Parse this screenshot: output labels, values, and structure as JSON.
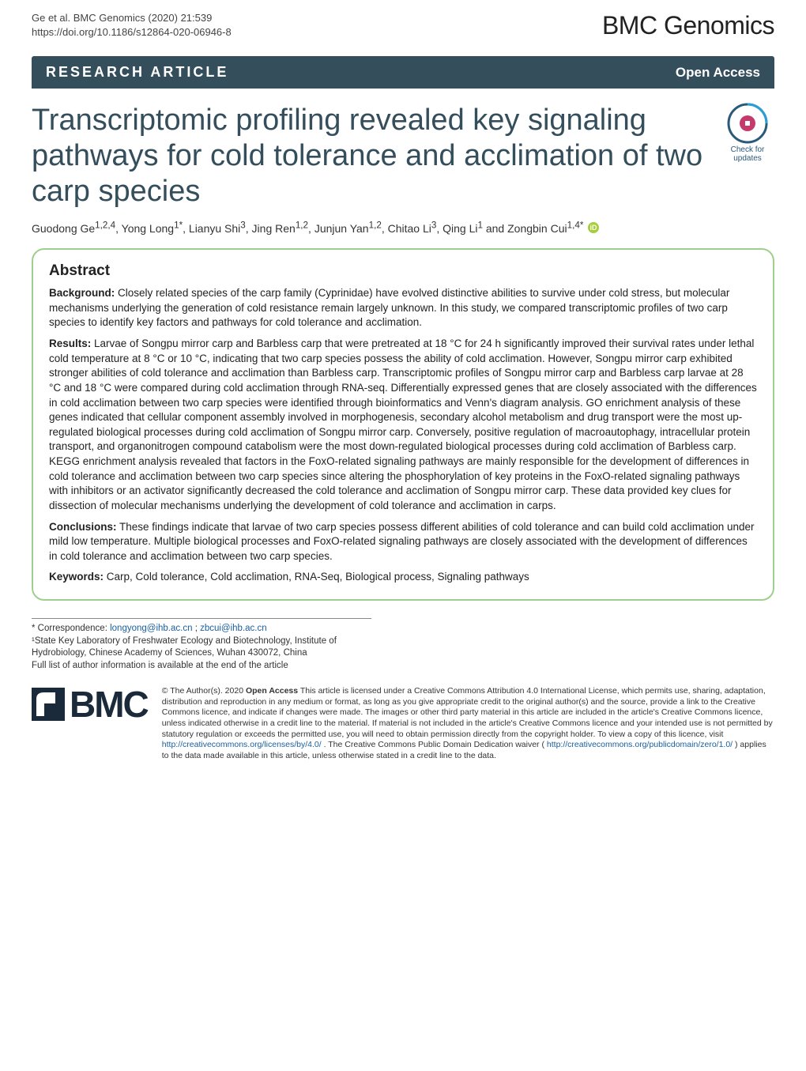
{
  "citation": {
    "line1": "Ge et al. BMC Genomics          (2020) 21:539",
    "line2": "https://doi.org/10.1186/s12864-020-06946-8"
  },
  "journal": "BMC Genomics",
  "bar": {
    "article_type": "RESEARCH ARTICLE",
    "open_access": "Open Access"
  },
  "title": "Transcriptomic profiling revealed key signaling pathways for cold tolerance and acclimation of two carp species",
  "check_updates": "Check for updates",
  "authors_html": "Guodong Ge<sup>1,2,4</sup>, Yong Long<sup>1*</sup>, Lianyu Shi<sup>3</sup>, Jing Ren<sup>1,2</sup>, Junjun Yan<sup>1,2</sup>, Chitao Li<sup>3</sup>, Qing Li<sup>1</sup> and Zongbin Cui<sup>1,4*</sup>",
  "abstract_heading": "Abstract",
  "abstract": {
    "background_label": "Background:",
    "background": "Closely related species of the carp family (Cyprinidae) have evolved distinctive abilities to survive under cold stress, but molecular mechanisms underlying the generation of cold resistance remain largely unknown. In this study, we compared transcriptomic profiles of two carp species to identify key factors and pathways for cold tolerance and acclimation.",
    "results_label": "Results:",
    "results": "Larvae of Songpu mirror carp and Barbless carp that were pretreated at 18 °C for 24 h significantly improved their survival rates under lethal cold temperature at 8 °C or 10 °C, indicating that two carp species possess the ability of cold acclimation. However, Songpu mirror carp exhibited stronger abilities of cold tolerance and acclimation than Barbless carp. Transcriptomic profiles of Songpu mirror carp and Barbless carp larvae at 28 °C and 18 °C were compared during cold acclimation through RNA-seq. Differentially expressed genes that are closely associated with the differences in cold acclimation between two carp species were identified through bioinformatics and Venn's diagram analysis. GO enrichment analysis of these genes indicated that cellular component assembly involved in morphogenesis, secondary alcohol metabolism and drug transport were the most up-regulated biological processes during cold acclimation of Songpu mirror carp. Conversely, positive regulation of macroautophagy, intracellular protein transport, and organonitrogen compound catabolism were the most down-regulated biological processes during cold acclimation of Barbless carp. KEGG enrichment analysis revealed that factors in the FoxO-related signaling pathways are mainly responsible for the development of differences in cold tolerance and acclimation between two carp species since altering the phosphorylation of key proteins in the FoxO-related signaling pathways with inhibitors or an activator significantly decreased the cold tolerance and acclimation of Songpu mirror carp. These data provided key clues for dissection of molecular mechanisms underlying the development of cold tolerance and acclimation in carps.",
    "conclusions_label": "Conclusions:",
    "conclusions": "These findings indicate that larvae of two carp species possess different abilities of cold tolerance and can build cold acclimation under mild low temperature. Multiple biological processes and FoxO-related signaling pathways are closely associated with the development of differences in cold tolerance and acclimation between two carp species.",
    "keywords_label": "Keywords:",
    "keywords": "Carp, Cold tolerance, Cold acclimation, RNA-Seq, Biological process, Signaling pathways"
  },
  "correspondence": {
    "star": "* Correspondence: ",
    "email1": "longyong@ihb.ac.cn",
    "sep": "; ",
    "email2": "zbcui@ihb.ac.cn",
    "affil1": "¹State Key Laboratory of Freshwater Ecology and Biotechnology, Institute of Hydrobiology, Chinese Academy of Sciences, Wuhan 430072, China",
    "more": "Full list of author information is available at the end of the article"
  },
  "bmc_text": "BMC",
  "license": {
    "prefix": "© The Author(s). 2020 ",
    "bold": "Open Access",
    "body1": " This article is licensed under a Creative Commons Attribution 4.0 International License, which permits use, sharing, adaptation, distribution and reproduction in any medium or format, as long as you give appropriate credit to the original author(s) and the source, provide a link to the Creative Commons licence, and indicate if changes were made. The images or other third party material in this article are included in the article's Creative Commons licence, unless indicated otherwise in a credit line to the material. If material is not included in the article's Creative Commons licence and your intended use is not permitted by statutory regulation or exceeds the permitted use, you will need to obtain permission directly from the copyright holder. To view a copy of this licence, visit ",
    "link1": "http://creativecommons.org/licenses/by/4.0/",
    "body2": ". The Creative Commons Public Domain Dedication waiver (",
    "link2": "http://creativecommons.org/publicdomain/zero/1.0/",
    "body3": ") applies to the data made available in this article, unless otherwise stated in a credit line to the data."
  },
  "colors": {
    "bar_bg": "#354e5c",
    "abstract_border": "#9fcf8e",
    "link": "#1a5fa0",
    "orcid": "#a6ce39"
  }
}
